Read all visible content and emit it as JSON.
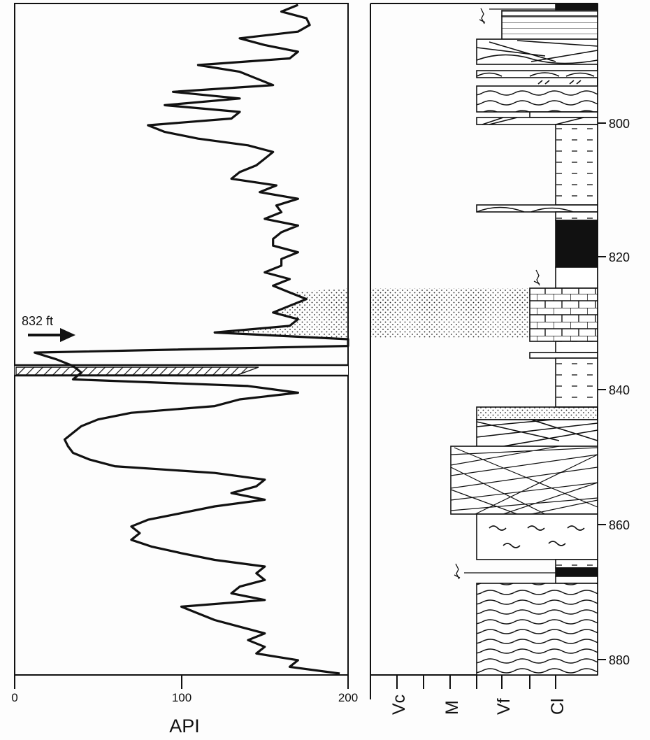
{
  "gamma_log": {
    "x_axis": {
      "label": "API",
      "min": 0,
      "max": 200,
      "ticks": [
        {
          "value": 0,
          "label": "0"
        },
        {
          "value": 100,
          "label": "100"
        },
        {
          "value": 200,
          "label": "200"
        }
      ]
    },
    "depth_range": [
      791,
      885
    ],
    "annotation": {
      "text": "832 ft",
      "depth": 832
    },
    "curve": [
      [
        170,
        791
      ],
      [
        160,
        791.5
      ],
      [
        175,
        792
      ],
      [
        177,
        793.5
      ],
      [
        170,
        794
      ],
      [
        135,
        796
      ],
      [
        150,
        797
      ],
      [
        170,
        798.5
      ],
      [
        165,
        799.5
      ],
      [
        110,
        802
      ],
      [
        135,
        803.5
      ],
      [
        145,
        805
      ],
      [
        155,
        806.5
      ],
      [
        95,
        807
      ],
      [
        135,
        808
      ],
      [
        90,
        809
      ],
      [
        135,
        810.5
      ],
      [
        130,
        811.5
      ],
      [
        80,
        813
      ],
      [
        90,
        814.5
      ],
      [
        110,
        816.5
      ],
      [
        140,
        818
      ],
      [
        155,
        818.5
      ],
      [
        150,
        819.5
      ],
      [
        145,
        819.5
      ],
      [
        135,
        820.5
      ],
      [
        130,
        822.5
      ],
      [
        157,
        824.5
      ],
      [
        147,
        824
      ],
      [
        170,
        825.5
      ],
      [
        157,
        826
      ],
      [
        160,
        827
      ],
      [
        150,
        826.5
      ],
      [
        170,
        828
      ],
      [
        160,
        828.5
      ],
      [
        155,
        830
      ],
      [
        155,
        830.5
      ],
      [
        170,
        831
      ],
      [
        160,
        832
      ],
      [
        160,
        833.5
      ],
      [
        150,
        833
      ],
      [
        165,
        834.5
      ],
      [
        155,
        834.5
      ],
      [
        165,
        836
      ],
      [
        175,
        837.5
      ],
      [
        165,
        837
      ],
      [
        155,
        838
      ],
      [
        170,
        838.5
      ],
      [
        165,
        839
      ],
      [
        120,
        842
      ],
      [
        200,
        843.5
      ],
      [
        200,
        844.5
      ],
      [
        12,
        845
      ],
      [
        25,
        847.5
      ],
      [
        35,
        847
      ],
      [
        40,
        848
      ],
      [
        35,
        849
      ],
      [
        140,
        851
      ],
      [
        170,
        853.5
      ],
      [
        135,
        854
      ],
      [
        120,
        853.5
      ],
      [
        70,
        855.5
      ],
      [
        50,
        857.5
      ],
      [
        40,
        857
      ],
      [
        35,
        858
      ],
      [
        30,
        859
      ],
      [
        32,
        859.5
      ],
      [
        35,
        860
      ],
      [
        45,
        861.5
      ],
      [
        60,
        862
      ],
      [
        120,
        863
      ],
      [
        150,
        863.5
      ],
      [
        145,
        864.5
      ],
      [
        130,
        865
      ],
      [
        150,
        866
      ],
      [
        120,
        867
      ],
      [
        100,
        868.5
      ],
      [
        80,
        868
      ],
      [
        70,
        869
      ],
      [
        75,
        869.5
      ],
      [
        70,
        870
      ],
      [
        82,
        871
      ],
      [
        100,
        871.5
      ],
      [
        120,
        872
      ],
      [
        150,
        872.5
      ],
      [
        145,
        873
      ],
      [
        150,
        873.5
      ],
      [
        135,
        874
      ],
      [
        130,
        874.5
      ],
      [
        150,
        875
      ],
      [
        100,
        875.5
      ],
      [
        110,
        876.5
      ],
      [
        120,
        878.5
      ],
      [
        135,
        877.5
      ],
      [
        150,
        878
      ],
      [
        140,
        879
      ],
      [
        150,
        880
      ],
      [
        145,
        882
      ],
      [
        170,
        883
      ],
      [
        165,
        885
      ],
      [
        195,
        884.5
      ]
    ]
  },
  "lithology_column": {
    "grain_size_labels": [
      "Vc",
      "M",
      "Vf",
      "Cl"
    ],
    "depth_ticks": [
      {
        "value": 800,
        "label": "800"
      },
      {
        "value": 820,
        "label": "820"
      },
      {
        "value": 840,
        "label": "840"
      },
      {
        "value": 860,
        "label": "860"
      },
      {
        "value": 880,
        "label": "880"
      }
    ]
  },
  "colors": {
    "ink": "#111111",
    "background": "#fdfdfd"
  }
}
